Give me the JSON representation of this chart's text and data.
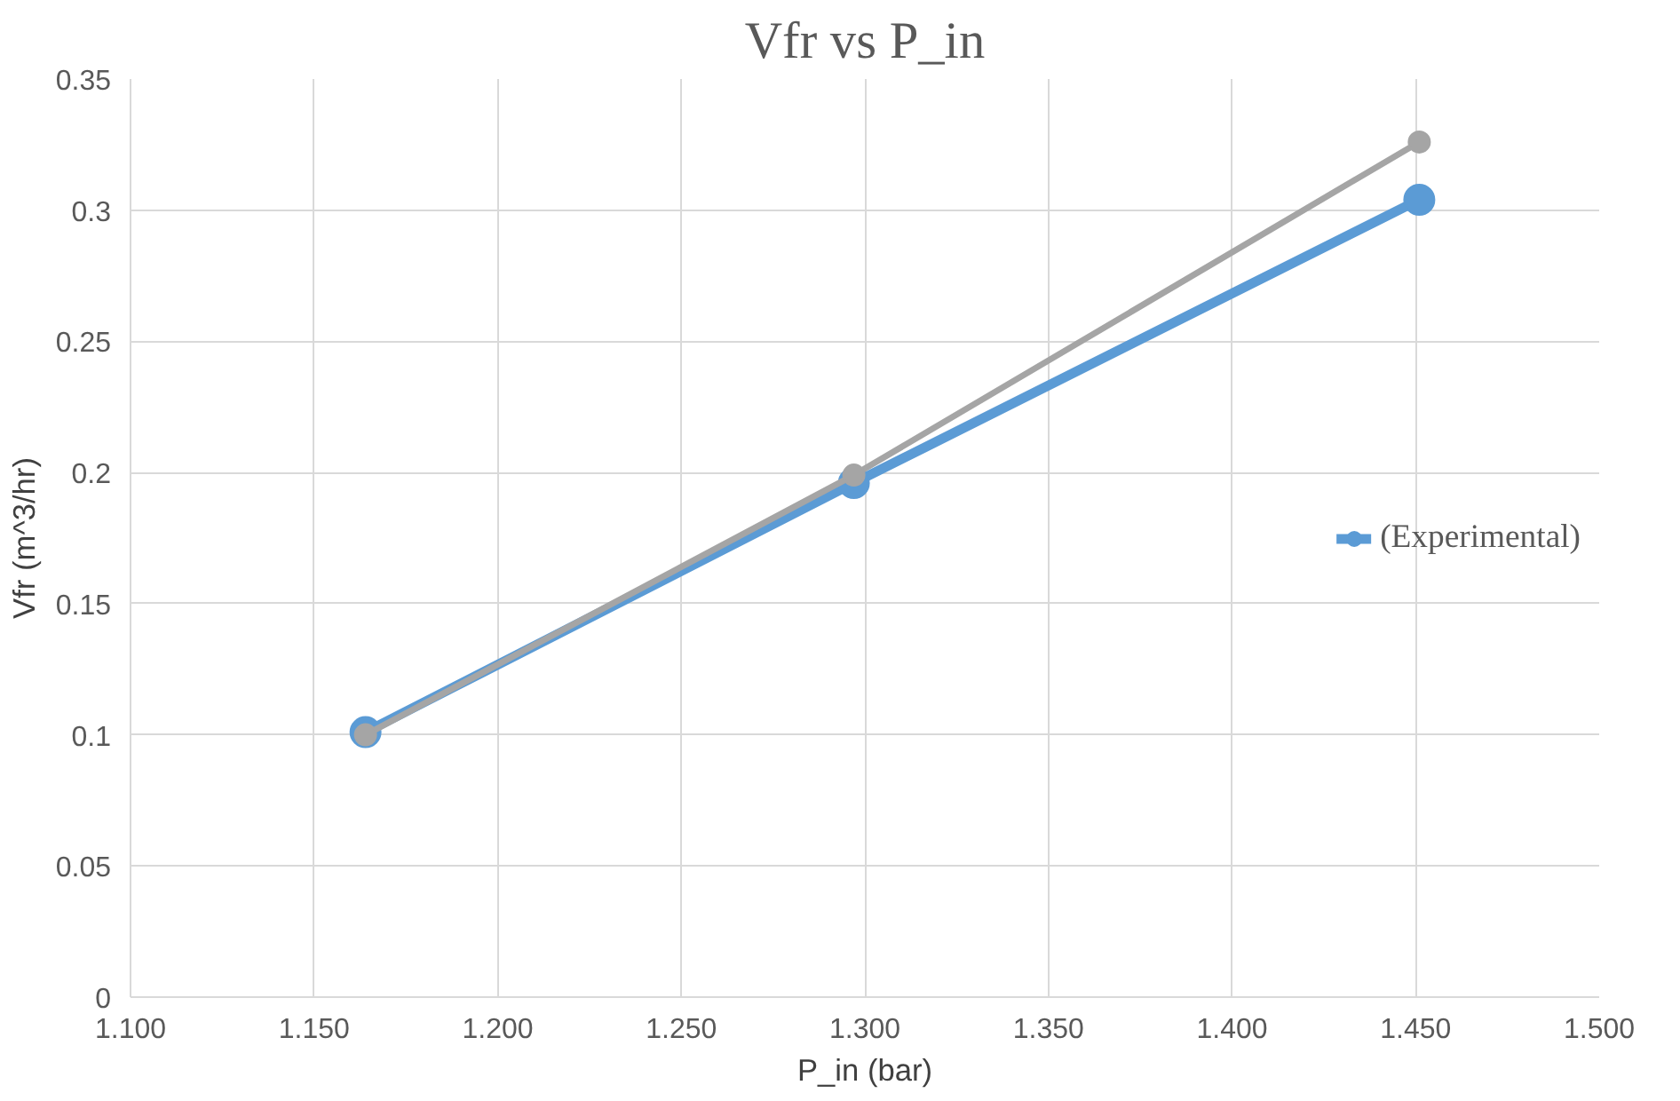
{
  "chart_data": {
    "type": "line",
    "title": "Vfr vs P_in",
    "xlabel": "P_in (bar)",
    "ylabel": "Vfr (m^3/hr)",
    "x": [
      1.164,
      1.297,
      1.451
    ],
    "series": [
      {
        "name": "(Experimental)",
        "color": "#5b9bd5",
        "values": [
          0.101,
          0.196,
          0.304
        ]
      },
      {
        "color": "#a5a5a5",
        "values": [
          0.1,
          0.199,
          0.326
        ]
      }
    ],
    "xlim": [
      1.1,
      1.5
    ],
    "xticks": [
      {
        "value": 1.1,
        "label": "1.100"
      },
      {
        "value": 1.15,
        "label": "1.150"
      },
      {
        "value": 1.2,
        "label": "1.200"
      },
      {
        "value": 1.25,
        "label": "1.250"
      },
      {
        "value": 1.3,
        "label": "1.300"
      },
      {
        "value": 1.35,
        "label": "1.350"
      },
      {
        "value": 1.4,
        "label": "1.400"
      },
      {
        "value": 1.45,
        "label": "1.450"
      },
      {
        "value": 1.5,
        "label": "1.500"
      }
    ],
    "ylim": [
      0,
      0.35
    ],
    "yticks": [
      0,
      0.05,
      0.1,
      0.15,
      0.2,
      0.25,
      0.3,
      0.35
    ],
    "grid": true,
    "legend": "right",
    "marker": "circle",
    "line_style": "solid"
  }
}
